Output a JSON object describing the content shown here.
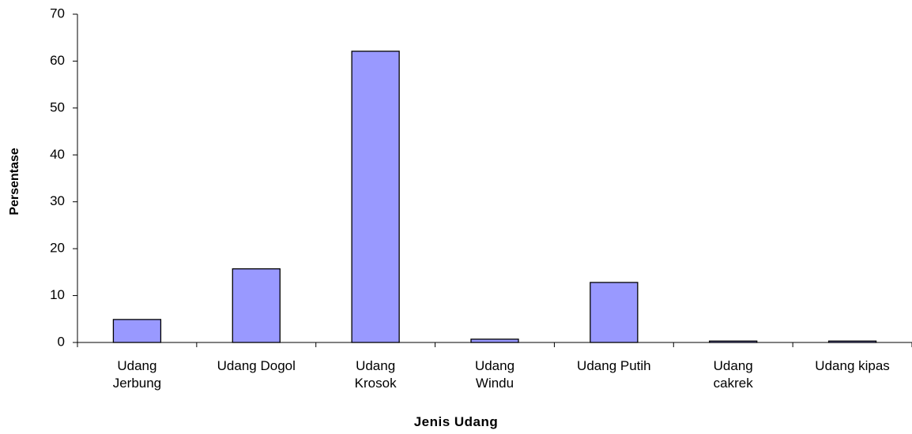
{
  "chart_data": {
    "type": "bar",
    "categories": [
      "Udang Jerbung",
      "Udang Dogol",
      "Udang Krosok",
      "Udang Windu",
      "Udang Putih",
      "Udang cakrek",
      "Udang kipas"
    ],
    "values": [
      4.9,
      15.7,
      62.1,
      0.7,
      12.8,
      0.3,
      0.3
    ],
    "color": "#9999ff",
    "ylim": [
      0,
      70
    ],
    "yticks": [
      0,
      10,
      20,
      30,
      40,
      50,
      60,
      70
    ],
    "y_label": "Persentase",
    "x_label": "Jenis Udang",
    "grid": false
  }
}
